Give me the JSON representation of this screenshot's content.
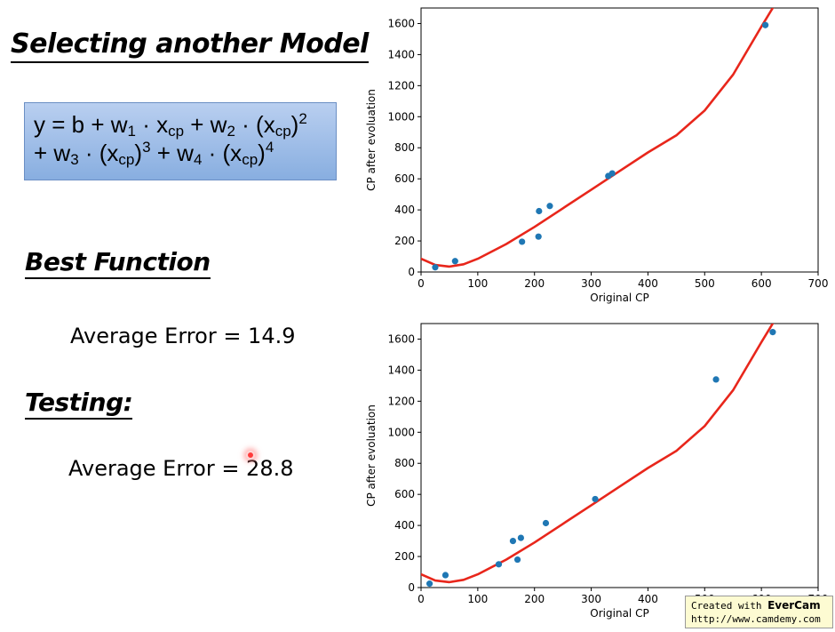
{
  "slide": {
    "title": "Selecting another Model",
    "formula": {
      "l1_a": "y = b + w",
      "l1_s1": "1",
      "l1_b": " · x",
      "l1_s2": "cp",
      "l1_c": " + w",
      "l1_s3": "2",
      "l1_d": " · (x",
      "l1_s4": "cp",
      "l1_e": ")",
      "l1_p1": "2",
      "l2_a": "+ w",
      "l2_s1": "3",
      "l2_b": " · (x",
      "l2_s2": "cp",
      "l2_c": ")",
      "l2_p1": "3",
      "l2_d": " + w",
      "l2_s3": "4",
      "l2_e": " · (x",
      "l2_s4": "cp",
      "l2_f": ")",
      "l2_p2": "4"
    },
    "best_heading": "Best Function",
    "best_error": "Average Error = 14.9",
    "testing_heading": "Testing:",
    "testing_error": "Average Error = 28.8"
  },
  "watermark": {
    "line1_prefix": "Created with ",
    "line1_brand": "EverCam",
    "line2": "http://www.camdemy.com"
  },
  "colors": {
    "curve": "#e8261b",
    "points": "#1f77b4",
    "formula_box": "#a7c3ea"
  },
  "chart_data": [
    {
      "type": "scatter",
      "xlabel": "Original CP",
      "ylabel": "CP after evoluation",
      "xlim": [
        0,
        700
      ],
      "ylim": [
        0,
        1700
      ],
      "xticks": [
        0,
        100,
        200,
        300,
        400,
        500,
        600,
        700
      ],
      "yticks": [
        0,
        200,
        400,
        600,
        800,
        1000,
        1200,
        1400,
        1600
      ],
      "x": [
        25,
        60,
        178,
        207,
        208,
        227,
        330,
        337,
        607
      ],
      "y": [
        30,
        70,
        195,
        228,
        392,
        425,
        618,
        635,
        1590
      ],
      "curve": {
        "x": [
          0,
          25,
          50,
          75,
          100,
          150,
          200,
          250,
          300,
          350,
          400,
          450,
          500,
          550,
          600,
          620
        ],
        "y": [
          85,
          45,
          35,
          50,
          85,
          180,
          290,
          410,
          530,
          650,
          770,
          880,
          1040,
          1270,
          1580,
          1700
        ]
      }
    },
    {
      "type": "scatter",
      "xlabel": "Original CP",
      "ylabel": "CP after evoluation",
      "xlim": [
        0,
        700
      ],
      "ylim": [
        0,
        1700
      ],
      "xticks": [
        0,
        100,
        200,
        300,
        400,
        500,
        600,
        700
      ],
      "yticks": [
        0,
        200,
        400,
        600,
        800,
        1000,
        1200,
        1400,
        1600
      ],
      "x": [
        15,
        43,
        137,
        162,
        170,
        176,
        220,
        307,
        520,
        620
      ],
      "y": [
        25,
        80,
        150,
        300,
        180,
        320,
        415,
        570,
        1340,
        1645
      ],
      "curve": {
        "x": [
          0,
          25,
          50,
          75,
          100,
          150,
          200,
          250,
          300,
          350,
          400,
          450,
          500,
          550,
          600,
          620
        ],
        "y": [
          85,
          45,
          35,
          50,
          85,
          180,
          290,
          410,
          530,
          650,
          770,
          880,
          1040,
          1270,
          1580,
          1700
        ]
      }
    }
  ]
}
